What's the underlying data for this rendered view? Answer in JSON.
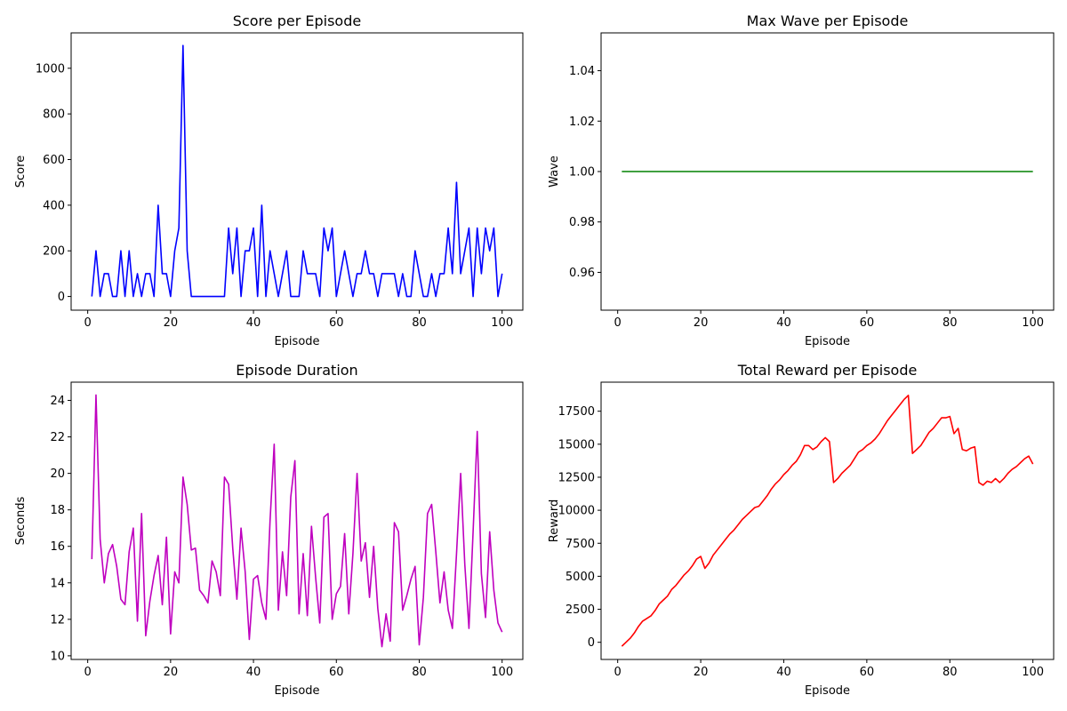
{
  "chart_data": [
    {
      "type": "line",
      "title": "Score per Episode",
      "xlabel": "Episode",
      "ylabel": "Score",
      "xlim": [
        -4,
        105
      ],
      "ylim": [
        -60,
        1155
      ],
      "xticks": [
        0,
        20,
        40,
        60,
        80,
        100
      ],
      "xtick_labels": [
        "0",
        "20",
        "40",
        "60",
        "80",
        "100"
      ],
      "yticks": [
        0,
        200,
        400,
        600,
        800,
        1000
      ],
      "ytick_labels": [
        "0",
        "200",
        "400",
        "600",
        "800",
        "1000"
      ],
      "grid": false,
      "color": "#0000ff",
      "x": [
        1,
        2,
        3,
        4,
        5,
        6,
        7,
        8,
        9,
        10,
        11,
        12,
        13,
        14,
        15,
        16,
        17,
        18,
        19,
        20,
        21,
        22,
        23,
        24,
        25,
        26,
        27,
        28,
        29,
        30,
        31,
        32,
        33,
        34,
        35,
        36,
        37,
        38,
        39,
        40,
        41,
        42,
        43,
        44,
        45,
        46,
        47,
        48,
        49,
        50,
        51,
        52,
        53,
        54,
        55,
        56,
        57,
        58,
        59,
        60,
        61,
        62,
        63,
        64,
        65,
        66,
        67,
        68,
        69,
        70,
        71,
        72,
        73,
        74,
        75,
        76,
        77,
        78,
        79,
        80,
        81,
        82,
        83,
        84,
        85,
        86,
        87,
        88,
        89,
        90,
        91,
        92,
        93,
        94,
        95,
        96,
        97,
        98,
        99,
        100
      ],
      "values": [
        0,
        200,
        0,
        100,
        100,
        0,
        0,
        200,
        0,
        200,
        0,
        100,
        0,
        100,
        100,
        0,
        400,
        100,
        100,
        0,
        200,
        300,
        1100,
        200,
        0,
        0,
        0,
        0,
        0,
        0,
        0,
        0,
        0,
        300,
        100,
        300,
        0,
        200,
        200,
        300,
        0,
        400,
        0,
        200,
        100,
        0,
        100,
        200,
        0,
        0,
        0,
        200,
        100,
        100,
        100,
        0,
        300,
        200,
        300,
        0,
        100,
        200,
        100,
        0,
        100,
        100,
        200,
        100,
        100,
        0,
        100,
        100,
        100,
        100,
        0,
        100,
        0,
        0,
        200,
        100,
        0,
        0,
        100,
        0,
        100,
        100,
        300,
        100,
        500,
        100,
        200,
        300,
        0,
        300,
        100,
        300,
        200,
        300,
        0,
        100
      ]
    },
    {
      "type": "line",
      "title": "Max Wave per Episode",
      "xlabel": "Episode",
      "ylabel": "Wave",
      "xlim": [
        -4,
        105
      ],
      "ylim": [
        0.945,
        1.055
      ],
      "xticks": [
        0,
        20,
        40,
        60,
        80,
        100
      ],
      "xtick_labels": [
        "0",
        "20",
        "40",
        "60",
        "80",
        "100"
      ],
      "yticks": [
        0.96,
        0.98,
        1.0,
        1.02,
        1.04
      ],
      "ytick_labels": [
        "0.96",
        "0.98",
        "1.00",
        "1.02",
        "1.04"
      ],
      "grid": false,
      "color": "#008000",
      "x": [
        1,
        100
      ],
      "values": [
        1,
        1
      ]
    },
    {
      "type": "line",
      "title": "Episode Duration",
      "xlabel": "Episode",
      "ylabel": "Seconds",
      "xlim": [
        -4,
        105
      ],
      "ylim": [
        9.8,
        25.0
      ],
      "xticks": [
        0,
        20,
        40,
        60,
        80,
        100
      ],
      "xtick_labels": [
        "0",
        "20",
        "40",
        "60",
        "80",
        "100"
      ],
      "yticks": [
        10,
        12,
        14,
        16,
        18,
        20,
        22,
        24
      ],
      "ytick_labels": [
        "10",
        "12",
        "14",
        "16",
        "18",
        "20",
        "22",
        "24"
      ],
      "grid": false,
      "color": "#bf00bf",
      "x": [
        1,
        2,
        3,
        4,
        5,
        6,
        7,
        8,
        9,
        10,
        11,
        12,
        13,
        14,
        15,
        16,
        17,
        18,
        19,
        20,
        21,
        22,
        23,
        24,
        25,
        26,
        27,
        28,
        29,
        30,
        31,
        32,
        33,
        34,
        35,
        36,
        37,
        38,
        39,
        40,
        41,
        42,
        43,
        44,
        45,
        46,
        47,
        48,
        49,
        50,
        51,
        52,
        53,
        54,
        55,
        56,
        57,
        58,
        59,
        60,
        61,
        62,
        63,
        64,
        65,
        66,
        67,
        68,
        69,
        70,
        71,
        72,
        73,
        74,
        75,
        76,
        77,
        78,
        79,
        80,
        81,
        82,
        83,
        84,
        85,
        86,
        87,
        88,
        89,
        90,
        91,
        92,
        93,
        94,
        95,
        96,
        97,
        98,
        99,
        100
      ],
      "values": [
        15.3,
        24.3,
        16.4,
        14.0,
        15.6,
        16.1,
        14.9,
        13.1,
        12.8,
        15.7,
        17.0,
        11.9,
        17.8,
        11.1,
        13.0,
        14.4,
        15.5,
        12.8,
        16.5,
        11.2,
        14.6,
        14.0,
        19.8,
        18.3,
        15.8,
        15.9,
        13.6,
        13.3,
        12.9,
        15.2,
        14.6,
        13.3,
        19.8,
        19.4,
        15.9,
        13.1,
        17.0,
        14.6,
        10.9,
        14.2,
        14.4,
        12.9,
        12.0,
        17.4,
        21.6,
        12.5,
        15.7,
        13.3,
        18.7,
        20.7,
        12.3,
        15.6,
        12.2,
        17.1,
        14.3,
        11.8,
        17.6,
        17.8,
        12.0,
        13.4,
        13.8,
        16.7,
        12.3,
        15.6,
        20.0,
        15.2,
        16.2,
        13.2,
        16.0,
        12.6,
        10.5,
        12.3,
        10.8,
        17.3,
        16.8,
        12.5,
        13.3,
        14.2,
        14.9,
        10.6,
        13.2,
        17.8,
        18.3,
        15.7,
        12.9,
        14.6,
        12.5,
        11.5,
        15.6,
        20.0,
        15.0,
        11.5,
        16.8,
        22.3,
        14.5,
        12.1,
        16.8,
        13.6,
        11.8,
        11.3
      ]
    },
    {
      "type": "line",
      "title": "Total Reward per Episode",
      "xlabel": "Episode",
      "ylabel": "Reward",
      "xlim": [
        -4,
        105
      ],
      "ylim": [
        -1300,
        19700
      ],
      "xticks": [
        0,
        20,
        40,
        60,
        80,
        100
      ],
      "xtick_labels": [
        "0",
        "20",
        "40",
        "60",
        "80",
        "100"
      ],
      "yticks": [
        0,
        2500,
        5000,
        7500,
        10000,
        12500,
        15000,
        17500
      ],
      "ytick_labels": [
        "0",
        "2500",
        "5000",
        "7500",
        "10000",
        "12500",
        "15000",
        "17500"
      ],
      "grid": false,
      "color": "#ff0000",
      "x": [
        1,
        2,
        3,
        4,
        5,
        6,
        7,
        8,
        9,
        10,
        11,
        12,
        13,
        14,
        15,
        16,
        17,
        18,
        19,
        20,
        21,
        22,
        23,
        24,
        25,
        26,
        27,
        28,
        29,
        30,
        31,
        32,
        33,
        34,
        35,
        36,
        37,
        38,
        39,
        40,
        41,
        42,
        43,
        44,
        45,
        46,
        47,
        48,
        49,
        50,
        51,
        52,
        53,
        54,
        55,
        56,
        57,
        58,
        59,
        60,
        61,
        62,
        63,
        64,
        65,
        66,
        67,
        68,
        69,
        70,
        71,
        72,
        73,
        74,
        75,
        76,
        77,
        78,
        79,
        80,
        81,
        82,
        83,
        84,
        85,
        86,
        87,
        88,
        89,
        90,
        91,
        92,
        93,
        94,
        95,
        96,
        97,
        98,
        99,
        100
      ],
      "values": [
        -300,
        0,
        300,
        700,
        1200,
        1600,
        1800,
        2000,
        2400,
        2900,
        3200,
        3500,
        4000,
        4300,
        4700,
        5100,
        5400,
        5800,
        6300,
        6500,
        5600,
        6000,
        6600,
        7000,
        7400,
        7800,
        8200,
        8500,
        8900,
        9300,
        9600,
        9900,
        10200,
        10300,
        10700,
        11100,
        11600,
        12000,
        12300,
        12700,
        13000,
        13400,
        13700,
        14200,
        14900,
        14900,
        14600,
        14800,
        15200,
        15500,
        15200,
        12100,
        12400,
        12800,
        13100,
        13400,
        13900,
        14400,
        14600,
        14900,
        15100,
        15400,
        15800,
        16300,
        16800,
        17200,
        17600,
        18000,
        18400,
        18700,
        14300,
        14600,
        14900,
        15400,
        15900,
        16200,
        16600,
        17000,
        17000,
        17100,
        15800,
        16200,
        14600,
        14500,
        14700,
        14800,
        12100,
        11900,
        12200,
        12100,
        12400,
        12100,
        12400,
        12800,
        13100,
        13300,
        13600,
        13900,
        14100,
        13500
      ]
    }
  ]
}
